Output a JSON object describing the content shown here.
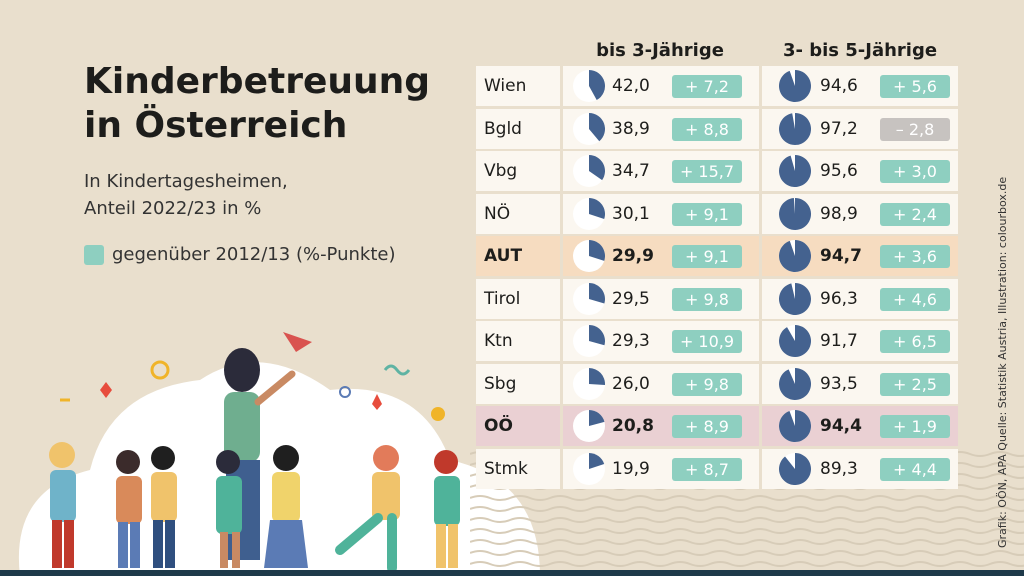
{
  "title_lines": [
    "Kinderbetreuung",
    "in Österreich"
  ],
  "subtitle_lines": [
    "In Kindertagesheimen,",
    "Anteil 2022/23 in %"
  ],
  "legend_label": "gegenüber 2012/13 (%-Punkte)",
  "credit": "Grafik: OÖN, APA Quelle: Statistik Austria, Illustration: colourbox.de",
  "colors": {
    "pie_fill": "#44628f",
    "pie_bg": "#ffffff",
    "badge_positive": "#8ecfc0",
    "badge_negative": "#c7c3c0",
    "highlight_aut": "#f6dcc0",
    "highlight_ooe": "#ead0d3"
  },
  "chart_data": {
    "type": "table",
    "columns": [
      "bis 3-Jährige",
      "3- bis 5-Jährige"
    ],
    "rows": [
      {
        "region": "Wien",
        "u3": 42.0,
        "u3_label": "42,0",
        "u3_change": "+ 7,2",
        "u3_change_value": 7.2,
        "k": 94.6,
        "k_label": "94,6",
        "k_change": "+ 5,6",
        "k_change_value": 5.6,
        "highlight": ""
      },
      {
        "region": "Bgld",
        "u3": 38.9,
        "u3_label": "38,9",
        "u3_change": "+ 8,8",
        "u3_change_value": 8.8,
        "k": 97.2,
        "k_label": "97,2",
        "k_change": "– 2,8",
        "k_change_value": -2.8,
        "highlight": ""
      },
      {
        "region": "Vbg",
        "u3": 34.7,
        "u3_label": "34,7",
        "u3_change": "+ 15,7",
        "u3_change_value": 15.7,
        "k": 95.6,
        "k_label": "95,6",
        "k_change": "+ 3,0",
        "k_change_value": 3.0,
        "highlight": ""
      },
      {
        "region": "NÖ",
        "u3": 30.1,
        "u3_label": "30,1",
        "u3_change": "+ 9,1",
        "u3_change_value": 9.1,
        "k": 98.9,
        "k_label": "98,9",
        "k_change": "+ 2,4",
        "k_change_value": 2.4,
        "highlight": ""
      },
      {
        "region": "AUT",
        "u3": 29.9,
        "u3_label": "29,9",
        "u3_change": "+ 9,1",
        "u3_change_value": 9.1,
        "k": 94.7,
        "k_label": "94,7",
        "k_change": "+ 3,6",
        "k_change_value": 3.6,
        "highlight": "aut"
      },
      {
        "region": "Tirol",
        "u3": 29.5,
        "u3_label": "29,5",
        "u3_change": "+ 9,8",
        "u3_change_value": 9.8,
        "k": 96.3,
        "k_label": "96,3",
        "k_change": "+ 4,6",
        "k_change_value": 4.6,
        "highlight": ""
      },
      {
        "region": "Ktn",
        "u3": 29.3,
        "u3_label": "29,3",
        "u3_change": "+ 10,9",
        "u3_change_value": 10.9,
        "k": 91.7,
        "k_label": "91,7",
        "k_change": "+ 6,5",
        "k_change_value": 6.5,
        "highlight": ""
      },
      {
        "region": "Sbg",
        "u3": 26.0,
        "u3_label": "26,0",
        "u3_change": "+ 9,8",
        "u3_change_value": 9.8,
        "k": 93.5,
        "k_label": "93,5",
        "k_change": "+ 2,5",
        "k_change_value": 2.5,
        "highlight": ""
      },
      {
        "region": "OÖ",
        "u3": 20.8,
        "u3_label": "20,8",
        "u3_change": "+ 8,9",
        "u3_change_value": 8.9,
        "k": 94.4,
        "k_label": "94,4",
        "k_change": "+ 1,9",
        "k_change_value": 1.9,
        "highlight": "ooe"
      },
      {
        "region": "Stmk",
        "u3": 19.9,
        "u3_label": "19,9",
        "u3_change": "+ 8,7",
        "u3_change_value": 8.7,
        "k": 89.3,
        "k_label": "89,3",
        "k_change": "+ 4,4",
        "k_change_value": 4.4,
        "highlight": ""
      }
    ]
  }
}
